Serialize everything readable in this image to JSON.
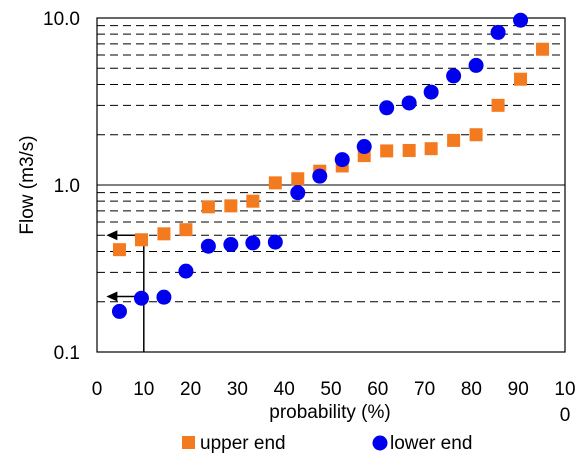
{
  "chart_data": {
    "type": "scatter",
    "xlabel": "probability (%)",
    "ylabel": "Flow (m3/s)",
    "xlim": [
      0,
      100
    ],
    "ylim": [
      0.1,
      10
    ],
    "y_scale": "log",
    "x_ticks": [
      "0",
      "10",
      "20",
      "30",
      "40",
      "50",
      "60",
      "70",
      "80",
      "90",
      "10\n0"
    ],
    "y_ticks": [
      "0.1",
      "1.0",
      "10.0"
    ],
    "grid": "horizontal major solid, minor dashed",
    "legend_position": "bottom",
    "series": [
      {
        "name": "upper end",
        "marker": "square",
        "color": "#f47a20",
        "x": [
          4.8,
          9.5,
          14.3,
          19.0,
          23.8,
          28.6,
          33.3,
          38.1,
          42.9,
          47.6,
          52.4,
          57.1,
          61.9,
          66.7,
          71.4,
          76.2,
          81.0,
          85.7,
          90.5,
          95.2
        ],
        "y": [
          0.41,
          0.47,
          0.51,
          0.54,
          0.74,
          0.75,
          0.8,
          1.03,
          1.09,
          1.21,
          1.3,
          1.5,
          1.6,
          1.61,
          1.65,
          1.85,
          2.0,
          3.0,
          4.3,
          6.5
        ]
      },
      {
        "name": "lower end",
        "marker": "circle",
        "color": "#0000ee",
        "x": [
          4.8,
          9.5,
          14.3,
          19.0,
          23.8,
          28.6,
          33.3,
          38.1,
          42.9,
          47.6,
          52.4,
          57.1,
          61.9,
          66.7,
          71.4,
          76.2,
          81.0,
          85.7,
          90.5
        ],
        "y": [
          0.175,
          0.21,
          0.213,
          0.305,
          0.43,
          0.44,
          0.45,
          0.455,
          0.9,
          1.13,
          1.42,
          1.7,
          2.9,
          3.1,
          3.6,
          4.5,
          5.2,
          8.2,
          9.7
        ]
      }
    ],
    "annotations": [
      {
        "type": "vertical-line",
        "x": 10,
        "y_from": 0.1,
        "y_to": 0.5
      },
      {
        "type": "arrow-left",
        "y": 0.5,
        "x_from": 10,
        "x_to": 2
      },
      {
        "type": "arrow-left",
        "y": 0.215,
        "x_from": 10,
        "x_to": 2
      }
    ]
  }
}
